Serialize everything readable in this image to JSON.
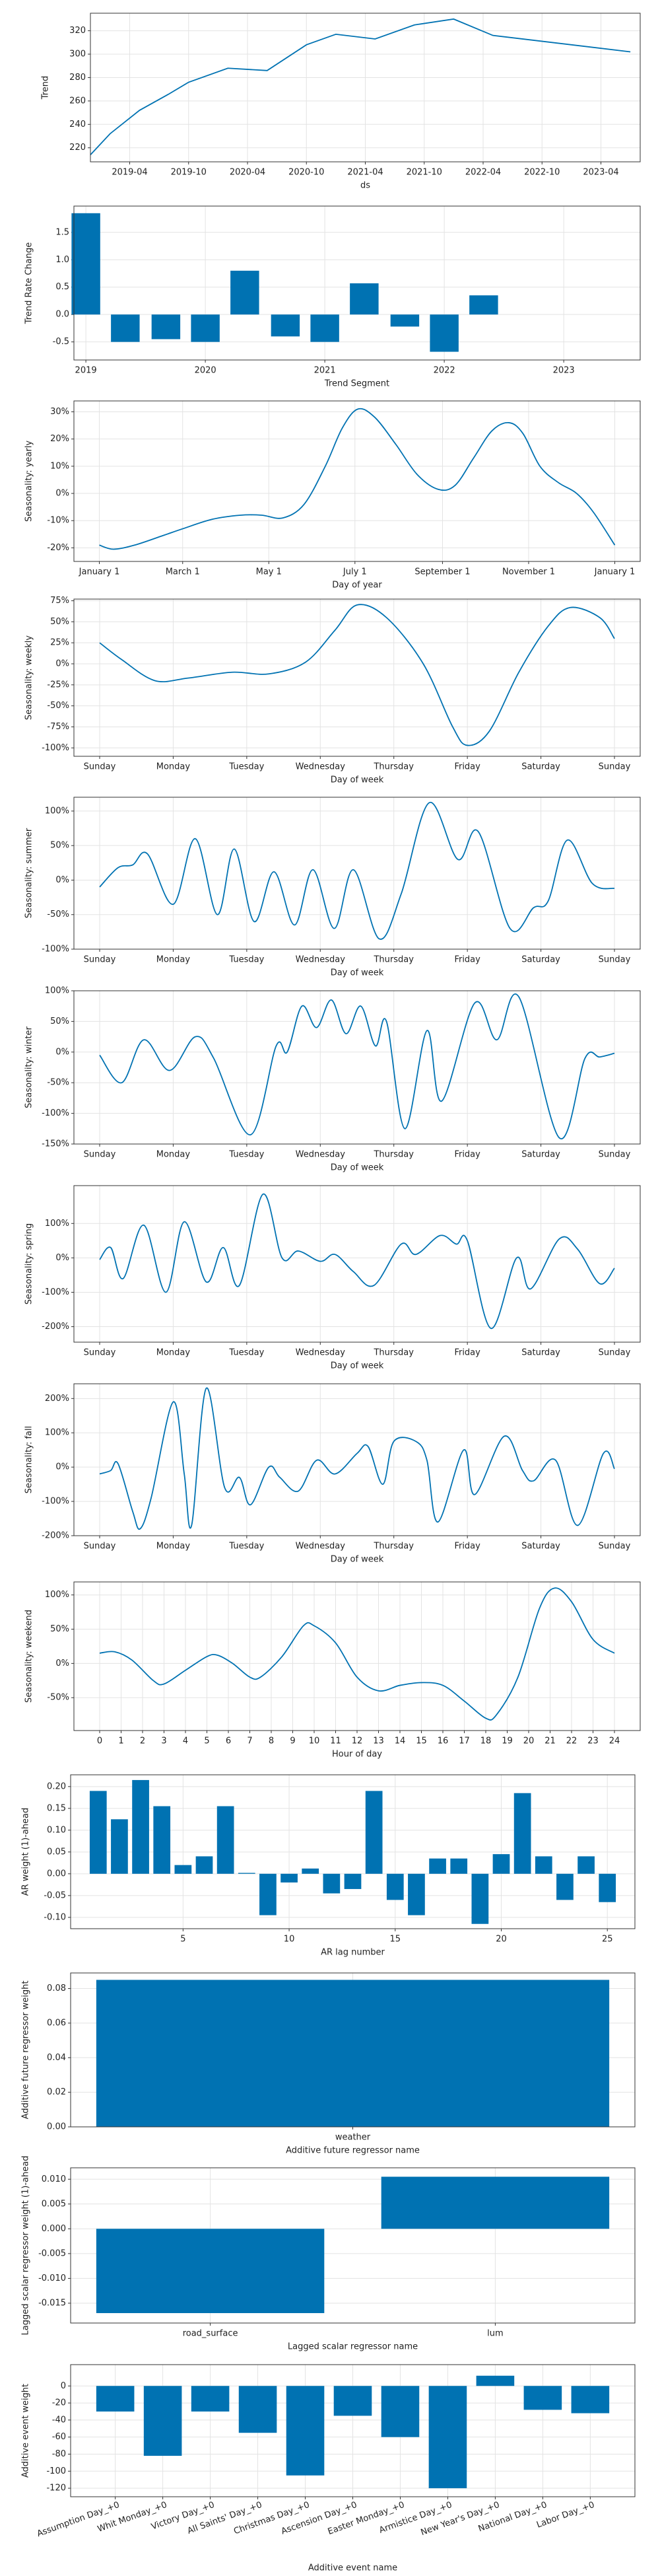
{
  "chart_data": [
    {
      "type": "line",
      "x": [
        "2018-12",
        "2019-02",
        "2019-05",
        "2019-08",
        "2019-10",
        "2020-02",
        "2020-06",
        "2020-10",
        "2021-01",
        "2021-05",
        "2021-09",
        "2022-01",
        "2022-05",
        "2023-07"
      ],
      "values": [
        214,
        232,
        252,
        266,
        276,
        288,
        286,
        308,
        317,
        313,
        325,
        330,
        316,
        302
      ],
      "color": "#0072B2",
      "xlim": [
        "2018-12",
        "2023-08"
      ],
      "ylim": [
        208,
        335
      ],
      "xticks": [
        "2019-04",
        "2019-10",
        "2020-04",
        "2020-10",
        "2021-04",
        "2021-10",
        "2022-04",
        "2022-10",
        "2023-04"
      ],
      "yticks": [
        220,
        240,
        260,
        280,
        300,
        320
      ],
      "xlabel": "ds",
      "ylabel": "Trend",
      "grid": true
    },
    {
      "type": "bar",
      "x": [
        2019,
        2019.33,
        2019.67,
        2020,
        2020.33,
        2020.67,
        2021,
        2021.33,
        2021.67,
        2022,
        2022.33
      ],
      "values": [
        1.85,
        -0.5,
        -0.45,
        -0.5,
        0.8,
        -0.4,
        -0.5,
        0.57,
        -0.22,
        -0.68,
        0.35
      ],
      "color": "#0072B2",
      "xlim": [
        2018.9,
        2023.64
      ],
      "ylim": [
        -0.83,
        1.98
      ],
      "xticks": [
        2019,
        2020,
        2021,
        2022,
        2023
      ],
      "yticks": [
        -0.5,
        {
          "value": 0,
          "label": "0.0"
        },
        0.5,
        {
          "value": 1,
          "label": "1.0"
        },
        1.5
      ],
      "xlabel": "Trend Segment",
      "ylabel": "Trend Rate Change",
      "grid": true
    },
    {
      "type": "line",
      "x": [
        0,
        10,
        25,
        45,
        59,
        80,
        100,
        115,
        130,
        145,
        160,
        172,
        183,
        195,
        210,
        225,
        240,
        252,
        265,
        278,
        290,
        300,
        312,
        325,
        338,
        350,
        365
      ],
      "values": [
        -19,
        -20.5,
        -19,
        -15.5,
        -13,
        -9.5,
        -8,
        -8,
        -9,
        -4,
        10,
        24,
        31,
        28,
        18,
        7,
        1.5,
        3,
        13,
        23,
        26,
        22,
        10,
        4,
        0,
        -7,
        -19
      ],
      "color": "#0072B2",
      "xlim": [
        -18,
        383
      ],
      "ylim": [
        -25,
        34
      ],
      "xticks": [
        {
          "value": 0,
          "label": "January 1"
        },
        {
          "value": 59,
          "label": "March 1"
        },
        {
          "value": 120,
          "label": "May 1"
        },
        {
          "value": 181,
          "label": "July 1"
        },
        {
          "value": 243,
          "label": "September 1"
        },
        {
          "value": 304,
          "label": "November 1"
        },
        {
          "value": 365,
          "label": "January 1"
        }
      ],
      "yticks": [
        {
          "value": -20,
          "label": "-20%"
        },
        {
          "value": -10,
          "label": "-10%"
        },
        {
          "value": 0,
          "label": "0%"
        },
        {
          "value": 10,
          "label": "10%"
        },
        {
          "value": 20,
          "label": "20%"
        },
        {
          "value": 30,
          "label": "30%"
        }
      ],
      "xlabel": "Day of year",
      "ylabel": "Seasonality: yearly",
      "grid": true
    },
    {
      "type": "line",
      "x": [
        0,
        0.3,
        0.75,
        1.2,
        1.8,
        2.3,
        2.8,
        3.2,
        3.5,
        3.9,
        4.4,
        4.8,
        5.0,
        5.3,
        5.7,
        6.1,
        6.4,
        6.8,
        7
      ],
      "values": [
        25,
        5,
        -20,
        -17,
        -10,
        -12,
        2,
        40,
        70,
        55,
        0,
        -75,
        -97,
        -80,
        -10,
        45,
        67,
        55,
        30
      ],
      "color": "#0072B2",
      "xlim": [
        -0.35,
        7.35
      ],
      "ylim": [
        -110,
        77
      ],
      "xticks": [
        {
          "value": 0,
          "label": "Sunday"
        },
        {
          "value": 1,
          "label": "Monday"
        },
        {
          "value": 2,
          "label": "Tuesday"
        },
        {
          "value": 3,
          "label": "Wednesday"
        },
        {
          "value": 4,
          "label": "Thursday"
        },
        {
          "value": 5,
          "label": "Friday"
        },
        {
          "value": 6,
          "label": "Saturday"
        },
        {
          "value": 7,
          "label": "Sunday"
        }
      ],
      "yticks": [
        {
          "value": -100,
          "label": "-100%"
        },
        {
          "value": -75,
          "label": "-75%"
        },
        {
          "value": -50,
          "label": "-50%"
        },
        {
          "value": -25,
          "label": "-25%"
        },
        {
          "value": 0,
          "label": "0%"
        },
        {
          "value": 25,
          "label": "25%"
        },
        {
          "value": 50,
          "label": "50%"
        },
        {
          "value": 75,
          "label": "75%"
        }
      ],
      "xlabel": "Day of week",
      "ylabel": "Seasonality: weekly",
      "grid": true
    },
    {
      "type": "line",
      "x": [
        0,
        0.25,
        0.45,
        0.65,
        1.0,
        1.3,
        1.6,
        1.83,
        2.1,
        2.37,
        2.65,
        2.9,
        3.19,
        3.45,
        3.8,
        4.1,
        4.48,
        4.87,
        5.15,
        5.58,
        5.9,
        6.1,
        6.36,
        6.7,
        7
      ],
      "values": [
        -10,
        18,
        22,
        38,
        -35,
        60,
        -50,
        45,
        -60,
        12,
        -65,
        15,
        -70,
        15,
        -85,
        -20,
        112,
        30,
        70,
        -70,
        -40,
        -30,
        58,
        -5,
        -12
      ],
      "color": "#0072B2",
      "xlim": [
        -0.35,
        7.35
      ],
      "ylim": [
        -100,
        120
      ],
      "xticks": [
        {
          "value": 0,
          "label": "Sunday"
        },
        {
          "value": 1,
          "label": "Monday"
        },
        {
          "value": 2,
          "label": "Tuesday"
        },
        {
          "value": 3,
          "label": "Wednesday"
        },
        {
          "value": 4,
          "label": "Thursday"
        },
        {
          "value": 5,
          "label": "Friday"
        },
        {
          "value": 6,
          "label": "Saturday"
        },
        {
          "value": 7,
          "label": "Sunday"
        }
      ],
      "yticks": [
        {
          "value": -100,
          "label": "-100%"
        },
        {
          "value": -50,
          "label": "-50%"
        },
        {
          "value": 0,
          "label": "0%"
        },
        {
          "value": 50,
          "label": "50%"
        },
        {
          "value": 100,
          "label": "100%"
        }
      ],
      "xlabel": "Day of week",
      "ylabel": "Seasonality: summer",
      "grid": true
    },
    {
      "type": "line",
      "x": [
        0,
        0.3,
        0.6,
        0.95,
        1.3,
        1.55,
        2.05,
        2.4,
        2.55,
        2.75,
        2.95,
        3.15,
        3.35,
        3.55,
        3.75,
        3.9,
        4.15,
        4.45,
        4.65,
        5.1,
        5.4,
        5.7,
        6.25,
        6.6,
        6.8,
        7
      ],
      "values": [
        -5,
        -50,
        20,
        -30,
        25,
        -10,
        -135,
        10,
        0,
        75,
        40,
        85,
        30,
        75,
        10,
        50,
        -125,
        35,
        -80,
        80,
        20,
        90,
        -140,
        -10,
        -8,
        -2
      ],
      "color": "#0072B2",
      "xlim": [
        -0.35,
        7.35
      ],
      "ylim": [
        -150,
        100
      ],
      "xticks": [
        {
          "value": 0,
          "label": "Sunday"
        },
        {
          "value": 1,
          "label": "Monday"
        },
        {
          "value": 2,
          "label": "Tuesday"
        },
        {
          "value": 3,
          "label": "Wednesday"
        },
        {
          "value": 4,
          "label": "Thursday"
        },
        {
          "value": 5,
          "label": "Friday"
        },
        {
          "value": 6,
          "label": "Saturday"
        },
        {
          "value": 7,
          "label": "Sunday"
        }
      ],
      "yticks": [
        {
          "value": -150,
          "label": "-150%"
        },
        {
          "value": -100,
          "label": "-100%"
        },
        {
          "value": -50,
          "label": "-50%"
        },
        {
          "value": 0,
          "label": "0%"
        },
        {
          "value": 50,
          "label": "50%"
        },
        {
          "value": 100,
          "label": "100%"
        }
      ],
      "xlabel": "Day of week",
      "ylabel": "Seasonality: winter",
      "grid": true
    },
    {
      "type": "line",
      "x": [
        0,
        0.15,
        0.32,
        0.6,
        0.9,
        1.15,
        1.45,
        1.68,
        1.9,
        2.22,
        2.48,
        2.7,
        3.0,
        3.2,
        3.45,
        3.73,
        4.1,
        4.3,
        4.63,
        4.85,
        5.0,
        5.32,
        5.67,
        5.86,
        6.25,
        6.5,
        6.8,
        7
      ],
      "values": [
        -5,
        30,
        -60,
        95,
        -100,
        105,
        -70,
        30,
        -80,
        185,
        0,
        20,
        -10,
        10,
        -40,
        -80,
        40,
        10,
        65,
        40,
        50,
        -205,
        0,
        -90,
        55,
        25,
        -75,
        -30
      ],
      "color": "#0072B2",
      "xlim": [
        -0.35,
        7.35
      ],
      "ylim": [
        -245,
        210
      ],
      "xticks": [
        {
          "value": 0,
          "label": "Sunday"
        },
        {
          "value": 1,
          "label": "Monday"
        },
        {
          "value": 2,
          "label": "Tuesday"
        },
        {
          "value": 3,
          "label": "Wednesday"
        },
        {
          "value": 4,
          "label": "Thursday"
        },
        {
          "value": 5,
          "label": "Friday"
        },
        {
          "value": 6,
          "label": "Saturday"
        },
        {
          "value": 7,
          "label": "Sunday"
        }
      ],
      "yticks": [
        {
          "value": -200,
          "label": "-200%"
        },
        {
          "value": -100,
          "label": "-100%"
        },
        {
          "value": 0,
          "label": "0%"
        },
        {
          "value": 100,
          "label": "100%"
        }
      ],
      "xlabel": "Day of week",
      "ylabel": "Seasonality: spring",
      "grid": true
    },
    {
      "type": "line",
      "x": [
        0,
        0.15,
        0.25,
        0.45,
        0.55,
        0.7,
        1.0,
        1.15,
        1.25,
        1.45,
        1.7,
        1.9,
        2.05,
        2.3,
        2.45,
        2.7,
        2.95,
        3.2,
        3.5,
        3.65,
        3.85,
        4.0,
        4.3,
        4.45,
        4.6,
        4.95,
        5.1,
        5.5,
        5.75,
        5.9,
        6.2,
        6.5,
        6.85,
        7
      ],
      "values": [
        -20,
        -10,
        10,
        -130,
        -180,
        -90,
        190,
        -20,
        -170,
        230,
        -60,
        -30,
        -110,
        0,
        -30,
        -70,
        20,
        -20,
        40,
        60,
        -50,
        75,
        75,
        20,
        -160,
        50,
        -80,
        90,
        -10,
        -40,
        20,
        -170,
        40,
        -5
      ],
      "color": "#0072B2",
      "xlim": [
        -0.35,
        7.35
      ],
      "ylim": [
        -200,
        243
      ],
      "xticks": [
        {
          "value": 0,
          "label": "Sunday"
        },
        {
          "value": 1,
          "label": "Monday"
        },
        {
          "value": 2,
          "label": "Tuesday"
        },
        {
          "value": 3,
          "label": "Wednesday"
        },
        {
          "value": 4,
          "label": "Thursday"
        },
        {
          "value": 5,
          "label": "Friday"
        },
        {
          "value": 6,
          "label": "Saturday"
        },
        {
          "value": 7,
          "label": "Sunday"
        }
      ],
      "yticks": [
        {
          "value": -200,
          "label": "-200%"
        },
        {
          "value": -100,
          "label": "-100%"
        },
        {
          "value": 0,
          "label": "0%"
        },
        {
          "value": 100,
          "label": "100%"
        },
        {
          "value": 200,
          "label": "200%"
        }
      ],
      "xlabel": "Day of week",
      "ylabel": "Seasonality: fall",
      "grid": true
    },
    {
      "type": "line",
      "x": [
        0,
        0.7,
        1.5,
        2.5,
        3,
        4,
        5,
        5.5,
        6.2,
        7,
        7.5,
        8.5,
        9.5,
        10,
        11,
        12,
        13,
        14,
        15,
        16,
        17,
        18,
        18.5,
        19.5,
        20.5,
        21.2,
        22,
        23,
        24
      ],
      "values": [
        15,
        17,
        5,
        -25,
        -30,
        -10,
        10,
        12,
        0,
        -20,
        -20,
        10,
        55,
        55,
        30,
        -20,
        -40,
        -32,
        -28,
        -32,
        -55,
        -80,
        -75,
        -20,
        80,
        110,
        90,
        35,
        15
      ],
      "color": "#0072B2",
      "xlim": [
        -1.2,
        25.2
      ],
      "ylim": [
        -98,
        119
      ],
      "xticks": [
        0,
        1,
        2,
        3,
        4,
        5,
        6,
        7,
        8,
        9,
        10,
        11,
        12,
        13,
        14,
        15,
        16,
        17,
        18,
        19,
        20,
        21,
        22,
        23,
        24
      ],
      "yticks": [
        {
          "value": -50,
          "label": "-50%"
        },
        {
          "value": 0,
          "label": "0%"
        },
        {
          "value": 50,
          "label": "50%"
        },
        {
          "value": 100,
          "label": "100%"
        }
      ],
      "xlabel": "Hour of day",
      "ylabel": "Seasonality: weekend",
      "grid": true
    },
    {
      "type": "bar",
      "x": [
        1,
        2,
        3,
        4,
        5,
        6,
        7,
        8,
        9,
        10,
        11,
        12,
        13,
        14,
        15,
        16,
        17,
        18,
        19,
        20,
        21,
        22,
        23,
        24,
        25
      ],
      "values": [
        0.19,
        0.125,
        0.215,
        0.155,
        0.02,
        0.04,
        0.155,
        0.002,
        -0.095,
        -0.02,
        0.012,
        -0.045,
        -0.035,
        0.19,
        -0.06,
        -0.095,
        0.035,
        0.035,
        -0.115,
        0.045,
        0.185,
        0.04,
        -0.06,
        0.04,
        -0.065
      ],
      "color": "#0072B2",
      "xlim": [
        -0.3,
        26.3
      ],
      "ylim": [
        -0.126,
        0.227
      ],
      "xticks": [
        5,
        10,
        15,
        20,
        25
      ],
      "yticks": [
        {
          "value": -0.1,
          "label": "-0.10"
        },
        -0.05,
        {
          "value": 0,
          "label": "0.00"
        },
        0.05,
        {
          "value": 0.1,
          "label": "0.10"
        },
        0.15,
        {
          "value": 0.2,
          "label": "0.20"
        }
      ],
      "xlabel": "AR lag number",
      "ylabel": "AR weight (1)-ahead",
      "grid": true
    },
    {
      "type": "bar",
      "categories": [
        "weather"
      ],
      "values": [
        0.085
      ],
      "color": "#0072B2",
      "ylim": [
        0,
        0.089
      ],
      "yticks": [
        {
          "value": 0,
          "label": "0.00"
        },
        0.02,
        0.04,
        0.06,
        0.08
      ],
      "xlabel": "Additive future regressor name",
      "ylabel": "Additive future regressor weight",
      "grid": true
    },
    {
      "type": "bar",
      "categories": [
        "road_surface",
        "lum"
      ],
      "values": [
        -0.017,
        0.0105
      ],
      "color": "#0072B2",
      "ylim": [
        -0.019,
        0.0123
      ],
      "yticks": [
        -0.015,
        {
          "value": -0.01,
          "label": "-0.010"
        },
        -0.005,
        {
          "value": 0,
          "label": "0.000"
        },
        0.005,
        {
          "value": 0.01,
          "label": "0.010"
        }
      ],
      "xlabel": "Lagged scalar regressor name",
      "ylabel": "Lagged scalar regressor weight (1)-ahead",
      "grid": true
    },
    {
      "type": "bar",
      "categories": [
        "Assumption Day_+0",
        "Whit Monday_+0",
        "Victory Day_+0",
        "All Saints' Day_+0",
        "Christmas Day_+0",
        "Ascension Day_+0",
        "Easter Monday_+0",
        "Armistice Day_+0",
        "New Year's Day_+0",
        "National Day_+0",
        "Labor Day_+0"
      ],
      "values": [
        -30,
        -82,
        -30,
        -55,
        -105,
        -35,
        -60,
        -120,
        12,
        -28,
        -32
      ],
      "color": "#0072B2",
      "ylim": [
        -130,
        25
      ],
      "yticks": [
        -120,
        -100,
        -80,
        -60,
        -40,
        -20,
        0
      ],
      "xlabel": "Additive event name",
      "ylabel": "Additive event weight",
      "grid": true
    }
  ]
}
